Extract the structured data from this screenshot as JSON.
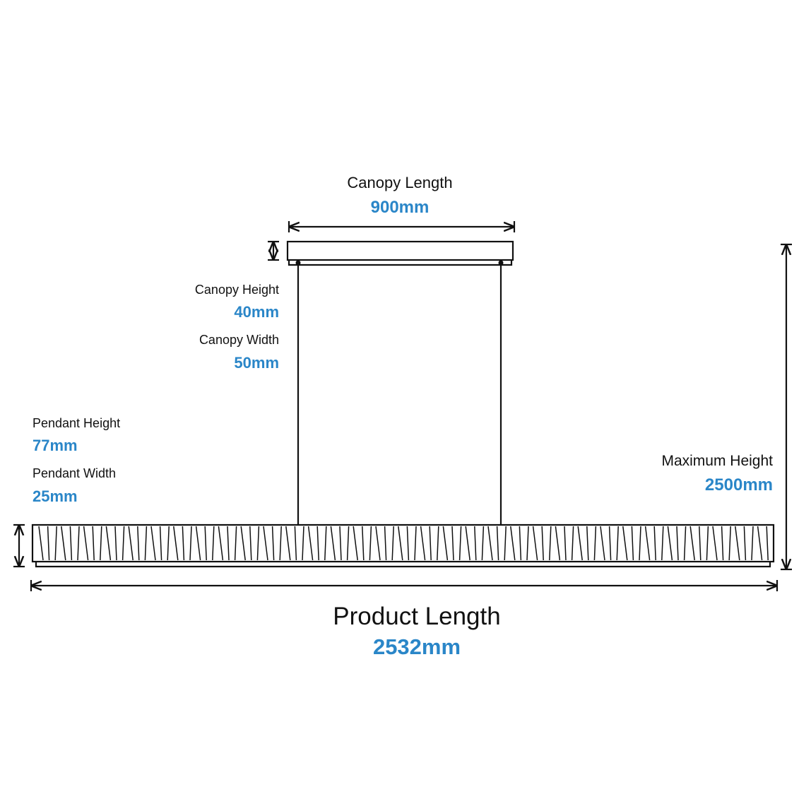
{
  "canopy_length": {
    "label": "Canopy Length",
    "value": "900mm"
  },
  "canopy_height": {
    "label": "Canopy Height",
    "value": "40mm"
  },
  "canopy_width": {
    "label": "Canopy Width",
    "value": "50mm"
  },
  "pendant_height": {
    "label": "Pendant Height",
    "value": "77mm"
  },
  "pendant_width": {
    "label": "Pendant Width",
    "value": "25mm"
  },
  "maximum_height": {
    "label": "Maximum Height",
    "value": "2500mm"
  },
  "product_length": {
    "label": "Product Length",
    "value": "2532mm"
  }
}
